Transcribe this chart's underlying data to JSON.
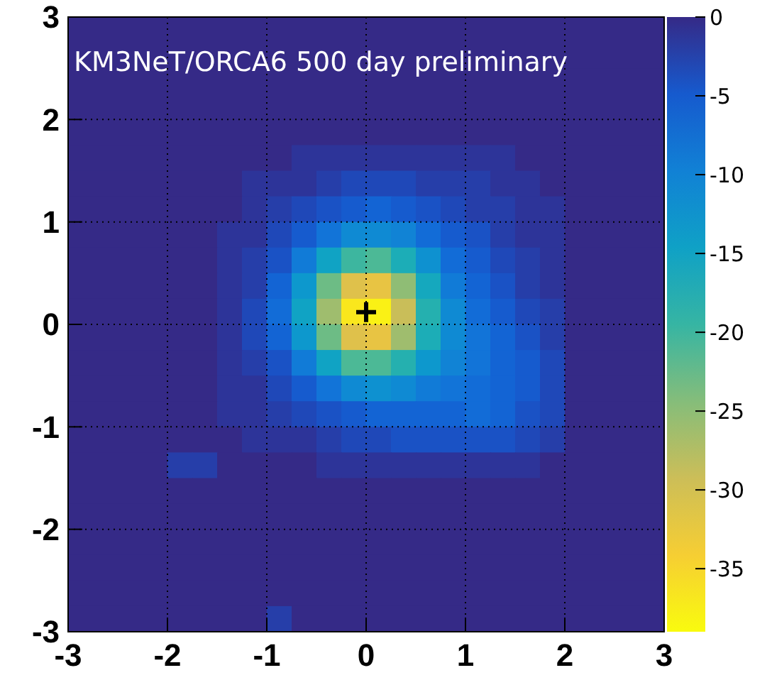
{
  "chart_data": {
    "type": "heatmap",
    "title": "KM3NeT/ORCA6 500 day preliminary",
    "x": [
      -2.875,
      -2.625,
      -2.375,
      -2.125,
      -1.875,
      -1.625,
      -1.375,
      -1.125,
      -0.875,
      -0.625,
      -0.375,
      -0.125,
      0.125,
      0.375,
      0.625,
      0.875,
      1.125,
      1.375,
      1.625,
      1.875,
      2.125,
      2.375,
      2.625,
      2.875
    ],
    "xlim": [
      -3,
      3
    ],
    "xticks": [
      -3,
      -2,
      -1,
      0,
      1,
      2,
      3
    ],
    "ylim": [
      -3,
      3
    ],
    "yticks": [
      -3,
      -2,
      -1,
      0,
      1,
      2,
      3
    ],
    "clim": [
      -39,
      0
    ],
    "cticks": [
      0,
      -5,
      -10,
      -15,
      -20,
      -25,
      -30,
      -35
    ],
    "grid": true,
    "cells": [
      [
        0,
        0,
        0,
        0,
        0,
        0,
        0,
        0,
        0,
        0,
        0,
        0,
        0,
        0,
        0,
        0,
        0,
        0,
        0,
        0,
        0,
        0,
        0,
        0
      ],
      [
        0,
        0,
        0,
        0,
        0,
        0,
        0,
        0,
        0,
        0,
        0,
        0,
        0,
        0,
        0,
        0,
        0,
        0,
        0,
        0,
        0,
        0,
        0,
        0
      ],
      [
        0,
        0,
        0,
        0,
        0,
        0,
        0,
        0,
        0,
        0,
        0,
        0,
        0,
        0,
        0,
        0,
        0,
        0,
        0,
        0,
        0,
        0,
        0,
        0
      ],
      [
        0,
        0,
        0,
        0,
        0,
        0,
        0,
        0,
        0,
        0,
        0,
        0,
        0,
        0,
        0,
        0,
        0,
        0,
        0,
        0,
        0,
        0,
        0,
        0
      ],
      [
        0,
        0,
        0,
        0,
        0,
        0,
        0,
        0,
        0,
        0,
        0,
        0,
        0,
        0,
        0,
        0,
        0,
        0,
        0,
        0,
        0,
        0,
        0,
        0
      ],
      [
        0,
        0,
        0,
        0,
        0,
        0,
        0,
        0,
        0,
        -1,
        -1,
        -1,
        -1,
        -1,
        -1,
        -1,
        -1,
        -1,
        0,
        0,
        0,
        0,
        0,
        0
      ],
      [
        0,
        0,
        0,
        0,
        0,
        0,
        0,
        -1,
        -1,
        -1,
        -2,
        -3,
        -3,
        -3,
        -2,
        -2,
        -2,
        -1,
        -1,
        0,
        0,
        0,
        0,
        0
      ],
      [
        0,
        0,
        0,
        0,
        0,
        0,
        0,
        -1,
        -2,
        -3,
        -4,
        -5,
        -6,
        -5,
        -4,
        -3,
        -2,
        -2,
        -1,
        -1,
        0,
        0,
        0,
        0
      ],
      [
        0,
        0,
        0,
        0,
        0,
        0,
        -1,
        -1,
        -3,
        -5,
        -8,
        -11,
        -11,
        -10,
        -7,
        -5,
        -4,
        -2,
        -1,
        -1,
        0,
        0,
        0,
        0
      ],
      [
        0,
        0,
        0,
        0,
        0,
        0,
        -1,
        -2,
        -4,
        -9,
        -15,
        -20,
        -21,
        -17,
        -12,
        -7,
        -5,
        -3,
        -2,
        -1,
        0,
        0,
        0,
        0
      ],
      [
        0,
        0,
        0,
        0,
        0,
        0,
        -1,
        -2,
        -6,
        -13,
        -23,
        -31,
        -32,
        -25,
        -16,
        -9,
        -6,
        -4,
        -2,
        -1,
        0,
        0,
        0,
        0
      ],
      [
        0,
        0,
        0,
        0,
        0,
        0,
        -1,
        -3,
        -7,
        -15,
        -26,
        -37,
        -38,
        -29,
        -18,
        -11,
        -7,
        -5,
        -3,
        -2,
        0,
        0,
        0,
        0
      ],
      [
        0,
        0,
        0,
        0,
        0,
        0,
        -1,
        -3,
        -6,
        -13,
        -23,
        -31,
        -32,
        -26,
        -17,
        -11,
        -8,
        -6,
        -4,
        -2,
        0,
        0,
        0,
        0
      ],
      [
        0,
        0,
        0,
        0,
        0,
        0,
        -1,
        -2,
        -4,
        -9,
        -15,
        -21,
        -21,
        -18,
        -13,
        -10,
        -8,
        -6,
        -5,
        -3,
        0,
        0,
        0,
        0
      ],
      [
        0,
        0,
        0,
        0,
        0,
        0,
        -1,
        -1,
        -3,
        -5,
        -8,
        -11,
        -12,
        -11,
        -9,
        -8,
        -7,
        -6,
        -5,
        -3,
        0,
        0,
        0,
        0
      ],
      [
        0,
        0,
        0,
        0,
        0,
        0,
        -1,
        -1,
        -2,
        -3,
        -4,
        -5,
        -6,
        -6,
        -6,
        -6,
        -7,
        -6,
        -4,
        -3,
        0,
        0,
        0,
        0
      ],
      [
        0,
        0,
        0,
        0,
        0,
        0,
        0,
        -1,
        -1,
        -1,
        -2,
        -3,
        -3,
        -4,
        -4,
        -4,
        -4,
        -4,
        -3,
        -2,
        0,
        0,
        0,
        0
      ],
      [
        0,
        0,
        0,
        0,
        -2,
        -2,
        0,
        0,
        0,
        0,
        -1,
        -1,
        -1,
        -1,
        -1,
        -1,
        -1,
        -1,
        -1,
        0,
        0,
        0,
        0,
        0
      ],
      [
        0,
        0,
        0,
        0,
        0,
        0,
        0,
        0,
        0,
        0,
        0,
        0,
        0,
        0,
        0,
        0,
        0,
        0,
        0,
        0,
        0,
        0,
        0,
        0
      ],
      [
        0,
        0,
        0,
        0,
        0,
        0,
        0,
        0,
        0,
        0,
        0,
        0,
        0,
        0,
        0,
        0,
        0,
        0,
        0,
        0,
        0,
        0,
        0,
        0
      ],
      [
        0,
        0,
        0,
        0,
        0,
        0,
        0,
        0,
        0,
        0,
        0,
        0,
        0,
        0,
        0,
        0,
        0,
        0,
        0,
        0,
        0,
        0,
        0,
        0
      ],
      [
        0,
        0,
        0,
        0,
        0,
        0,
        0,
        0,
        0,
        0,
        0,
        0,
        0,
        0,
        0,
        0,
        0,
        0,
        0,
        0,
        0,
        0,
        0,
        0
      ],
      [
        0,
        0,
        0,
        0,
        0,
        0,
        0,
        0,
        0,
        0,
        0,
        0,
        0,
        0,
        0,
        0,
        0,
        0,
        0,
        0,
        0,
        0,
        0,
        0
      ],
      [
        0,
        0,
        0,
        0,
        0,
        0,
        0,
        0,
        -2,
        0,
        0,
        0,
        0,
        0,
        0,
        0,
        0,
        0,
        0,
        0,
        0,
        0,
        0,
        0
      ]
    ],
    "series": [
      {
        "type": "scatter",
        "x": [
          0
        ],
        "values": [
          0.12
        ],
        "marker": "cross",
        "color": "#000000"
      }
    ]
  }
}
